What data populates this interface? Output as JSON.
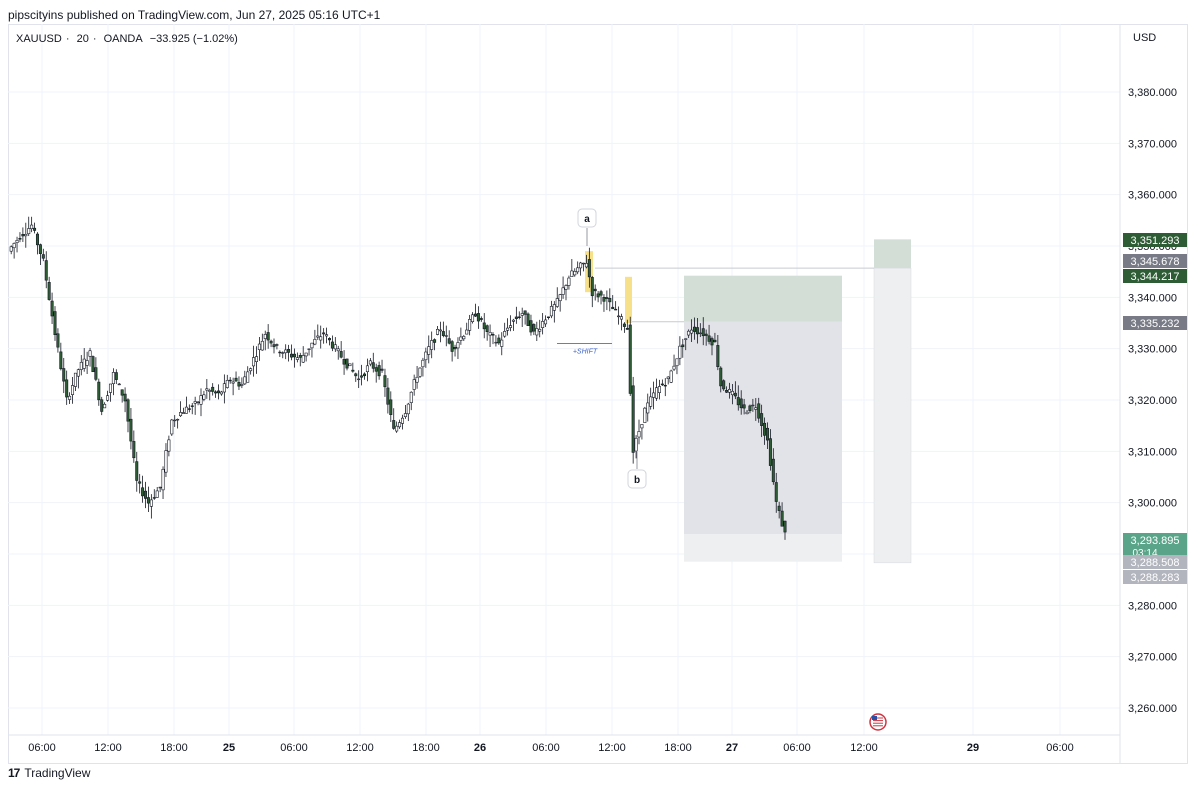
{
  "header": {
    "published_text": "pipscityins published on TradingView.com, Jun 27, 2025 05:16 UTC+1"
  },
  "symbol": {
    "ticker": "XAUUSD",
    "interval": "20",
    "broker": "OANDA",
    "change": "−33.925 (−1.02%)",
    "sep": "·"
  },
  "axis": {
    "currency": "USD",
    "y_ticks": [
      "3,380.000",
      "3,370.000",
      "3,360.000",
      "3,350.000",
      "3,340.000",
      "3,330.000",
      "3,320.000",
      "3,310.000",
      "3,300.000",
      "3,290.000",
      "3,280.000",
      "3,270.000",
      "3,260.000"
    ],
    "x_ticks": [
      "06:00",
      "12:00",
      "18:00",
      "25",
      "06:00",
      "12:00",
      "18:00",
      "26",
      "06:00",
      "12:00",
      "18:00",
      "27",
      "06:00",
      "12:00",
      "29",
      "06:00"
    ]
  },
  "price_labels": [
    {
      "text": "3,351.293",
      "color": "#2e5c35"
    },
    {
      "text": "3,345.678",
      "color": "#787b86"
    },
    {
      "text": "3,344.217",
      "color": "#2e5c35"
    },
    {
      "text": "3,335.232",
      "color": "#787b86"
    },
    {
      "text": "3,293.895",
      "sub": "03:14",
      "color": "#5aa58a"
    },
    {
      "text": "3,288.508",
      "color": "#b2b5be"
    },
    {
      "text": "3,288.283",
      "color": "#b2b5be"
    }
  ],
  "annotations": {
    "a": "a",
    "b": "b",
    "shift": "+SHIFT"
  },
  "footer": {
    "brand": "TradingView",
    "mark": "17"
  },
  "colors": {
    "up": "#ffffff",
    "down": "#2e5c35",
    "wick": "#131722",
    "yellow": "#f7e08a",
    "tp_zone": "#d3ded6",
    "sl_zone": "#e2e3e8",
    "pale_zone": "#eeeff1",
    "grid": "#f0f3fa"
  },
  "chart_data": {
    "type": "candlestick",
    "symbol": "XAUUSD",
    "interval": "20",
    "ylim": [
      3255,
      3385
    ],
    "x_ticks": [
      "06:00",
      "12:00",
      "18:00",
      "25",
      "06:00",
      "12:00",
      "18:00",
      "26",
      "06:00",
      "12:00",
      "18:00",
      "27",
      "06:00",
      "12:00",
      "29",
      "06:00"
    ],
    "waypoints": [
      [
        0,
        3349
      ],
      [
        4,
        3352
      ],
      [
        8,
        3354
      ],
      [
        12,
        3347
      ],
      [
        16,
        3333
      ],
      [
        20,
        3320
      ],
      [
        24,
        3326
      ],
      [
        28,
        3329
      ],
      [
        32,
        3318
      ],
      [
        36,
        3325
      ],
      [
        40,
        3320
      ],
      [
        44,
        3304
      ],
      [
        48,
        3300
      ],
      [
        52,
        3303
      ],
      [
        56,
        3316
      ],
      [
        60,
        3318
      ],
      [
        64,
        3319
      ],
      [
        68,
        3322
      ],
      [
        72,
        3321
      ],
      [
        76,
        3324
      ],
      [
        80,
        3323
      ],
      [
        84,
        3328
      ],
      [
        88,
        3333
      ],
      [
        92,
        3330
      ],
      [
        96,
        3329
      ],
      [
        100,
        3328
      ],
      [
        104,
        3331
      ],
      [
        108,
        3333
      ],
      [
        112,
        3330
      ],
      [
        116,
        3327
      ],
      [
        120,
        3324
      ],
      [
        124,
        3327
      ],
      [
        128,
        3325
      ],
      [
        132,
        3314
      ],
      [
        136,
        3318
      ],
      [
        140,
        3325
      ],
      [
        144,
        3330
      ],
      [
        148,
        3334
      ],
      [
        152,
        3330
      ],
      [
        156,
        3333
      ],
      [
        160,
        3337
      ],
      [
        164,
        3333
      ],
      [
        168,
        3331
      ],
      [
        172,
        3335
      ],
      [
        176,
        3337
      ],
      [
        180,
        3333
      ],
      [
        184,
        3336
      ],
      [
        188,
        3339
      ],
      [
        192,
        3344
      ],
      [
        196,
        3346
      ],
      [
        198,
        3347
      ],
      [
        200,
        3341
      ],
      [
        204,
        3340
      ],
      [
        208,
        3337
      ],
      [
        212,
        3334
      ],
      [
        214,
        3310
      ],
      [
        218,
        3318
      ],
      [
        222,
        3322
      ],
      [
        226,
        3324
      ],
      [
        230,
        3330
      ],
      [
        234,
        3334
      ],
      [
        238,
        3333
      ],
      [
        242,
        3331
      ],
      [
        244,
        3323
      ],
      [
        248,
        3321
      ],
      [
        252,
        3318
      ],
      [
        256,
        3319
      ],
      [
        260,
        3312
      ],
      [
        263,
        3300
      ],
      [
        266,
        3293.9
      ]
    ]
  }
}
